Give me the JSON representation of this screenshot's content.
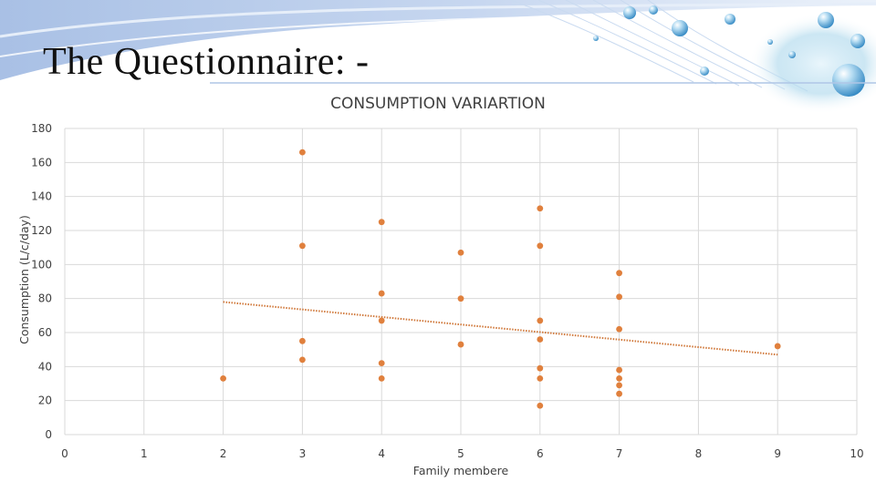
{
  "slide": {
    "title": "The Questionnaire: -"
  },
  "colors": {
    "marker": "#E0803D",
    "trendline": "#D0783A",
    "grid": "#D9D9D9",
    "text": "#404040"
  },
  "chart_data": {
    "type": "scatter",
    "title": "CONSUMPTION VARIARTION",
    "xlabel": "Family membere",
    "ylabel": "Consumption (L/c/day)",
    "xlim": [
      0,
      10
    ],
    "ylim": [
      0,
      180
    ],
    "x_ticks": [
      0,
      1,
      2,
      3,
      4,
      5,
      6,
      7,
      8,
      9,
      10
    ],
    "y_ticks": [
      0,
      20,
      40,
      60,
      80,
      100,
      120,
      140,
      160,
      180
    ],
    "grid": true,
    "legend": "none",
    "points": [
      {
        "x": 2,
        "y": 33
      },
      {
        "x": 3,
        "y": 166
      },
      {
        "x": 3,
        "y": 111
      },
      {
        "x": 3,
        "y": 55
      },
      {
        "x": 3,
        "y": 44
      },
      {
        "x": 4,
        "y": 125
      },
      {
        "x": 4,
        "y": 83
      },
      {
        "x": 4,
        "y": 67
      },
      {
        "x": 4,
        "y": 42
      },
      {
        "x": 4,
        "y": 33
      },
      {
        "x": 5,
        "y": 107
      },
      {
        "x": 5,
        "y": 80
      },
      {
        "x": 5,
        "y": 53
      },
      {
        "x": 6,
        "y": 133
      },
      {
        "x": 6,
        "y": 111
      },
      {
        "x": 6,
        "y": 67
      },
      {
        "x": 6,
        "y": 56
      },
      {
        "x": 6,
        "y": 39
      },
      {
        "x": 6,
        "y": 33
      },
      {
        "x": 6,
        "y": 17
      },
      {
        "x": 7,
        "y": 95
      },
      {
        "x": 7,
        "y": 81
      },
      {
        "x": 7,
        "y": 62
      },
      {
        "x": 7,
        "y": 38
      },
      {
        "x": 7,
        "y": 33
      },
      {
        "x": 7,
        "y": 29
      },
      {
        "x": 7,
        "y": 24
      },
      {
        "x": 9,
        "y": 52
      }
    ],
    "trendline": {
      "type": "linear",
      "style": "dotted",
      "from": {
        "x": 2,
        "y": 78
      },
      "to": {
        "x": 9,
        "y": 47
      }
    }
  }
}
